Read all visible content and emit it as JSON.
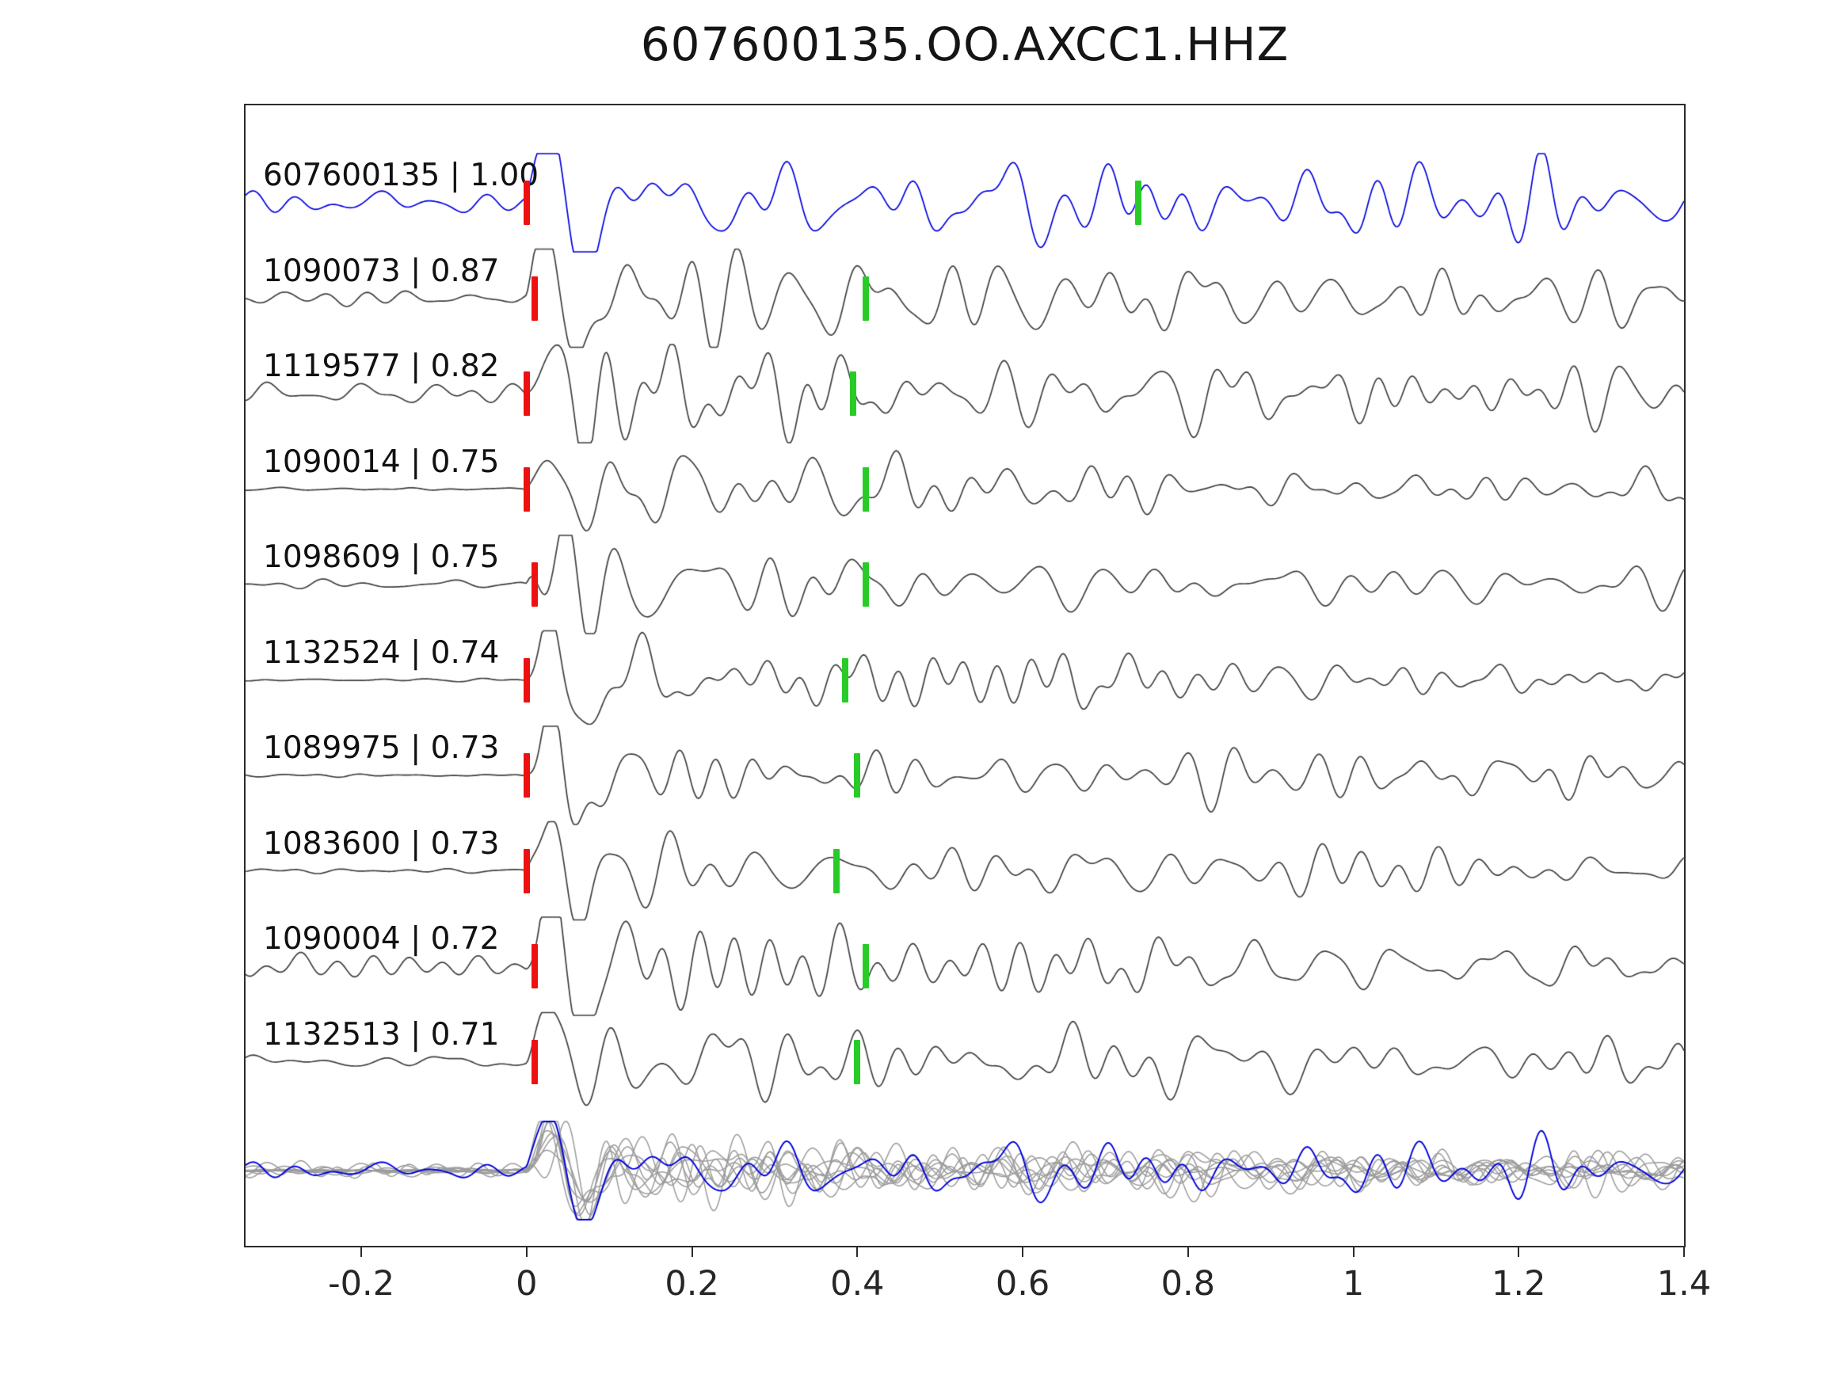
{
  "title": "607600135.OO.AXCC1.HHZ",
  "chart_data": {
    "type": "line",
    "subtype": "seismic-waveform-stack",
    "title": "607600135.OO.AXCC1.HHZ",
    "xlabel": "",
    "ylabel": "",
    "xlim": [
      -0.34,
      1.4
    ],
    "x_ticks": [
      "-0.2",
      "0",
      "0.2",
      "0.4",
      "0.6",
      "0.8",
      "1",
      "1.2",
      "1.4"
    ],
    "x_tick_values": [
      -0.2,
      0,
      0.2,
      0.4,
      0.6,
      0.8,
      1,
      1.2,
      1.4
    ],
    "grid": false,
    "legend": "none",
    "colors": {
      "template_trace": "#0000e0",
      "detection_trace": "#3f3f3f",
      "overlay_traces": "#9b9b9b",
      "red_pick": "#ee1111",
      "green_pick": "#27cc27",
      "axis": "#2b2b2b"
    },
    "traces": [
      {
        "label": "607600135 | 1.00",
        "id": "607600135",
        "correlation": 1.0,
        "is_template": true,
        "red_tick_x": 0.0,
        "green_tick_x": 0.74,
        "pre_event_noise": "moderate"
      },
      {
        "label": "1090073 | 0.87",
        "id": "1090073",
        "correlation": 0.87,
        "is_template": false,
        "red_tick_x": 0.01,
        "green_tick_x": 0.41,
        "pre_event_noise": "moderate"
      },
      {
        "label": "1119577 | 0.82",
        "id": "1119577",
        "correlation": 0.82,
        "is_template": false,
        "red_tick_x": 0.0,
        "green_tick_x": 0.395,
        "pre_event_noise": "high"
      },
      {
        "label": "1090014 | 0.75",
        "id": "1090014",
        "correlation": 0.75,
        "is_template": false,
        "red_tick_x": 0.0,
        "green_tick_x": 0.41,
        "pre_event_noise": "low"
      },
      {
        "label": "1098609 | 0.75",
        "id": "1098609",
        "correlation": 0.75,
        "is_template": false,
        "red_tick_x": 0.01,
        "green_tick_x": 0.41,
        "pre_event_noise": "low"
      },
      {
        "label": "1132524 | 0.74",
        "id": "1132524",
        "correlation": 0.74,
        "is_template": false,
        "red_tick_x": 0.0,
        "green_tick_x": 0.385,
        "pre_event_noise": "low"
      },
      {
        "label": "1089975 | 0.73",
        "id": "1089975",
        "correlation": 0.73,
        "is_template": false,
        "red_tick_x": 0.0,
        "green_tick_x": 0.4,
        "pre_event_noise": "low"
      },
      {
        "label": "1083600 | 0.73",
        "id": "1083600",
        "correlation": 0.73,
        "is_template": false,
        "red_tick_x": 0.0,
        "green_tick_x": 0.375,
        "pre_event_noise": "low"
      },
      {
        "label": "1090004 | 0.72",
        "id": "1090004",
        "correlation": 0.72,
        "is_template": false,
        "red_tick_x": 0.01,
        "green_tick_x": 0.41,
        "pre_event_noise": "moderate"
      },
      {
        "label": "1132513 | 0.71",
        "id": "1132513",
        "correlation": 0.71,
        "is_template": false,
        "red_tick_x": 0.01,
        "green_tick_x": 0.4,
        "pre_event_noise": "moderate"
      }
    ],
    "overlay_row": {
      "description": "all detection traces superimposed in gray with blue template trace on top"
    }
  }
}
